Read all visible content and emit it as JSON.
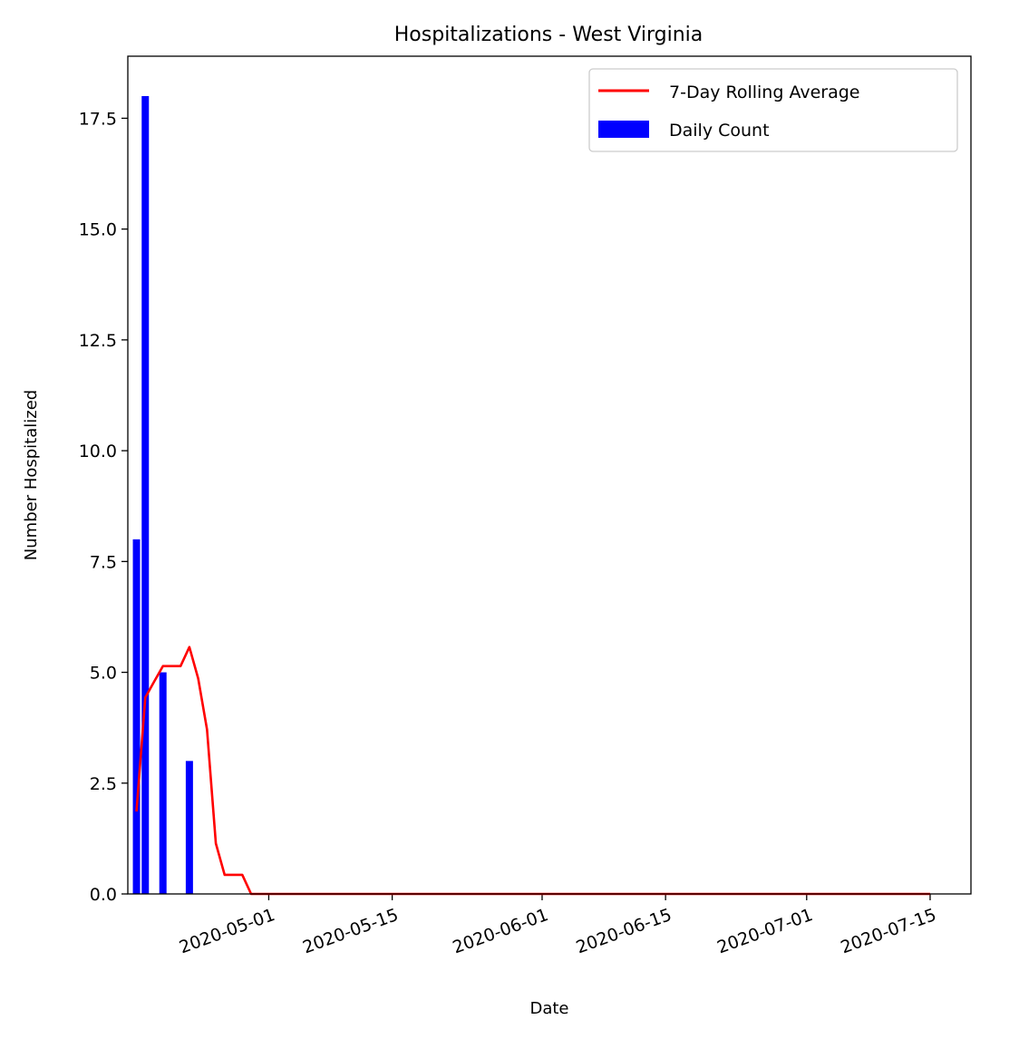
{
  "chart_data": {
    "type": "bar",
    "title": "Hospitalizations - West Virginia",
    "xlabel": "Date",
    "ylabel": "Number Hospitalized",
    "ylim": [
      0,
      18.9
    ],
    "xlim": [
      "2020-04-16",
      "2020-07-19"
    ],
    "x_ticks": [
      "2020-05-01",
      "2020-05-15",
      "2020-06-01",
      "2020-06-15",
      "2020-07-01",
      "2020-07-15"
    ],
    "y_ticks": [
      "0.0",
      "2.5",
      "5.0",
      "7.5",
      "10.0",
      "12.5",
      "15.0",
      "17.5"
    ],
    "legend_position": "upper right",
    "grid": false,
    "series": [
      {
        "name": "Daily Count",
        "kind": "bar",
        "color": "#0000ff",
        "points": [
          {
            "x": "2020-04-16",
            "y": 8
          },
          {
            "x": "2020-04-17",
            "y": 18
          },
          {
            "x": "2020-04-19",
            "y": 5
          },
          {
            "x": "2020-04-22",
            "y": 3
          }
        ]
      },
      {
        "name": "7-Day Rolling Average",
        "kind": "line",
        "color": "#ff0000",
        "points": [
          {
            "x": "2020-04-16",
            "y": 1.86
          },
          {
            "x": "2020-04-17",
            "y": 4.43
          },
          {
            "x": "2020-04-18",
            "y": 4.79
          },
          {
            "x": "2020-04-19",
            "y": 5.14
          },
          {
            "x": "2020-04-20",
            "y": 5.14
          },
          {
            "x": "2020-04-21",
            "y": 5.14
          },
          {
            "x": "2020-04-22",
            "y": 5.57
          },
          {
            "x": "2020-04-23",
            "y": 4.86
          },
          {
            "x": "2020-04-24",
            "y": 3.71
          },
          {
            "x": "2020-04-25",
            "y": 1.14
          },
          {
            "x": "2020-04-26",
            "y": 0.43
          },
          {
            "x": "2020-04-27",
            "y": 0.43
          },
          {
            "x": "2020-04-28",
            "y": 0.43
          },
          {
            "x": "2020-04-29",
            "y": 0
          },
          {
            "x": "2020-07-15",
            "y": 0
          }
        ]
      }
    ]
  }
}
